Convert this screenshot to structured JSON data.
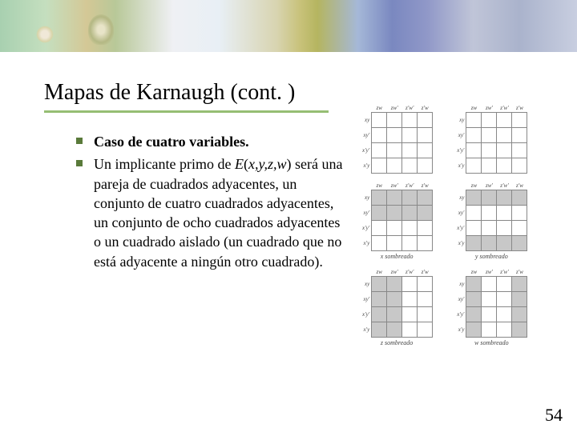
{
  "banner": {
    "gradient_colors": [
      "#a8d0b0",
      "#c5dfbf",
      "#d4c896",
      "#eff0f4",
      "#d8d4b0",
      "#c8c27a",
      "#a5b8d8",
      "#7a88c0",
      "#c8cee0"
    ]
  },
  "title": "Mapas de Karnaugh (cont. )",
  "underline_color": "#96be74",
  "bullets": [
    {
      "bold": true,
      "text": "Caso de cuatro variables."
    },
    {
      "bold": false,
      "text_html": "Un implicante primo de <span class=\"italic\">E</span>(<span class=\"italic\">x,y,z,w</span>) será una pareja de cuadrados adyacentes, un conjunto de cuatro cuadrados adyacentes, un conjunto de ocho cuadrados adyacentes o un cuadrado aislado (un cuadrado que no está adyacente a ningún otro cuadrado)."
    }
  ],
  "kmap_common": {
    "col_headers": [
      "zw",
      "zw'",
      "z'w'",
      "z'w"
    ],
    "row_headers": [
      "xy",
      "xy'",
      "x'y'",
      "x'y"
    ],
    "cell_size": 19,
    "border_color": "#888888",
    "shaded_color": "#c8c8c8",
    "font_size": 7
  },
  "kmaps": [
    [
      {
        "caption": "",
        "shaded": []
      },
      {
        "caption": "",
        "shaded": []
      }
    ],
    [
      {
        "caption": "x sombreado",
        "shaded": [
          [
            0,
            0
          ],
          [
            0,
            1
          ],
          [
            0,
            2
          ],
          [
            0,
            3
          ],
          [
            1,
            0
          ],
          [
            1,
            1
          ],
          [
            1,
            2
          ],
          [
            1,
            3
          ]
        ]
      },
      {
        "caption": "y sombreado",
        "shaded": [
          [
            0,
            0
          ],
          [
            0,
            1
          ],
          [
            0,
            2
          ],
          [
            0,
            3
          ],
          [
            3,
            0
          ],
          [
            3,
            1
          ],
          [
            3,
            2
          ],
          [
            3,
            3
          ]
        ]
      }
    ],
    [
      {
        "caption": "z sombreado",
        "shaded": [
          [
            0,
            0
          ],
          [
            0,
            1
          ],
          [
            1,
            0
          ],
          [
            1,
            1
          ],
          [
            2,
            0
          ],
          [
            2,
            1
          ],
          [
            3,
            0
          ],
          [
            3,
            1
          ]
        ]
      },
      {
        "caption": "w sombreado",
        "shaded": [
          [
            0,
            0
          ],
          [
            0,
            3
          ],
          [
            1,
            0
          ],
          [
            1,
            3
          ],
          [
            2,
            0
          ],
          [
            2,
            3
          ],
          [
            3,
            0
          ],
          [
            3,
            3
          ]
        ]
      }
    ]
  ],
  "page_number": "54",
  "text_color": "#000000",
  "background_color": "#ffffff"
}
